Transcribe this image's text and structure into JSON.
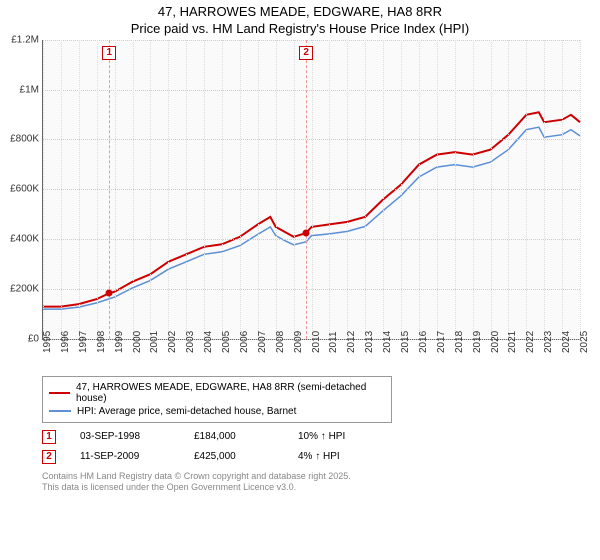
{
  "title": {
    "line1": "47, HARROWES MEADE, EDGWARE, HA8 8RR",
    "line2": "Price paid vs. HM Land Registry's House Price Index (HPI)"
  },
  "chart": {
    "type": "line",
    "background_color": "#fafafa",
    "grid_color": "#dddddd",
    "ylim": [
      0,
      1200000
    ],
    "ytick_step": 200000,
    "yticks": [
      {
        "v": 0,
        "label": "£0"
      },
      {
        "v": 200000,
        "label": "£200K"
      },
      {
        "v": 400000,
        "label": "£400K"
      },
      {
        "v": 600000,
        "label": "£600K"
      },
      {
        "v": 800000,
        "label": "£800K"
      },
      {
        "v": 1000000,
        "label": "£1M"
      },
      {
        "v": 1200000,
        "label": "£1.2M"
      }
    ],
    "xlim": [
      1995,
      2025
    ],
    "xticks": [
      1995,
      1996,
      1997,
      1998,
      1999,
      2000,
      2001,
      2002,
      2003,
      2004,
      2005,
      2006,
      2007,
      2008,
      2009,
      2010,
      2011,
      2012,
      2013,
      2014,
      2015,
      2016,
      2017,
      2018,
      2019,
      2020,
      2021,
      2022,
      2023,
      2024,
      2025
    ],
    "series": [
      {
        "name": "price_paid",
        "label": "47, HARROWES MEADE, EDGWARE, HA8 8RR (semi-detached house)",
        "color": "#cc0000",
        "line_width": 2,
        "points": [
          [
            1995,
            130000
          ],
          [
            1996,
            130000
          ],
          [
            1997,
            140000
          ],
          [
            1998,
            160000
          ],
          [
            1998.7,
            184000
          ],
          [
            1999,
            190000
          ],
          [
            2000,
            230000
          ],
          [
            2001,
            260000
          ],
          [
            2002,
            310000
          ],
          [
            2003,
            340000
          ],
          [
            2004,
            370000
          ],
          [
            2005,
            380000
          ],
          [
            2006,
            410000
          ],
          [
            2007,
            460000
          ],
          [
            2007.7,
            490000
          ],
          [
            2008,
            450000
          ],
          [
            2008.5,
            430000
          ],
          [
            2009,
            410000
          ],
          [
            2009.7,
            425000
          ],
          [
            2010,
            450000
          ],
          [
            2011,
            460000
          ],
          [
            2012,
            470000
          ],
          [
            2013,
            490000
          ],
          [
            2014,
            560000
          ],
          [
            2015,
            620000
          ],
          [
            2016,
            700000
          ],
          [
            2017,
            740000
          ],
          [
            2018,
            750000
          ],
          [
            2019,
            740000
          ],
          [
            2020,
            760000
          ],
          [
            2021,
            820000
          ],
          [
            2022,
            900000
          ],
          [
            2022.7,
            910000
          ],
          [
            2023,
            870000
          ],
          [
            2024,
            880000
          ],
          [
            2024.5,
            900000
          ],
          [
            2025,
            870000
          ]
        ]
      },
      {
        "name": "hpi",
        "label": "HPI: Average price, semi-detached house, Barnet",
        "color": "#5b8fd6",
        "line_width": 1.5,
        "points": [
          [
            1995,
            120000
          ],
          [
            1996,
            120000
          ],
          [
            1997,
            128000
          ],
          [
            1998,
            145000
          ],
          [
            1999,
            168000
          ],
          [
            2000,
            205000
          ],
          [
            2001,
            235000
          ],
          [
            2002,
            280000
          ],
          [
            2003,
            310000
          ],
          [
            2004,
            340000
          ],
          [
            2005,
            350000
          ],
          [
            2006,
            375000
          ],
          [
            2007,
            420000
          ],
          [
            2007.7,
            450000
          ],
          [
            2008,
            415000
          ],
          [
            2008.5,
            395000
          ],
          [
            2009,
            378000
          ],
          [
            2009.7,
            390000
          ],
          [
            2010,
            415000
          ],
          [
            2011,
            422000
          ],
          [
            2012,
            432000
          ],
          [
            2013,
            452000
          ],
          [
            2014,
            515000
          ],
          [
            2015,
            575000
          ],
          [
            2016,
            650000
          ],
          [
            2017,
            690000
          ],
          [
            2018,
            700000
          ],
          [
            2019,
            690000
          ],
          [
            2020,
            710000
          ],
          [
            2021,
            760000
          ],
          [
            2022,
            840000
          ],
          [
            2022.7,
            850000
          ],
          [
            2023,
            810000
          ],
          [
            2024,
            820000
          ],
          [
            2024.5,
            840000
          ],
          [
            2025,
            815000
          ]
        ]
      }
    ],
    "event_markers": [
      {
        "n": 1,
        "x": 1998.7,
        "y": 184000,
        "color": "#cc0000"
      },
      {
        "n": 2,
        "x": 2009.7,
        "y": 425000,
        "color": "#cc0000"
      }
    ],
    "axis_fontsize": 10,
    "title_fontsize": 13
  },
  "legend": {
    "row1": "47, HARROWES MEADE, EDGWARE, HA8 8RR (semi-detached house)",
    "row2": "HPI: Average price, semi-detached house, Barnet"
  },
  "events": [
    {
      "n": "1",
      "date": "03-SEP-1998",
      "price": "£184,000",
      "delta": "10% ↑ HPI"
    },
    {
      "n": "2",
      "date": "11-SEP-2009",
      "price": "£425,000",
      "delta": "4% ↑ HPI"
    }
  ],
  "footer": {
    "line1": "Contains HM Land Registry data © Crown copyright and database right 2025.",
    "line2": "This data is licensed under the Open Government Licence v3.0."
  }
}
